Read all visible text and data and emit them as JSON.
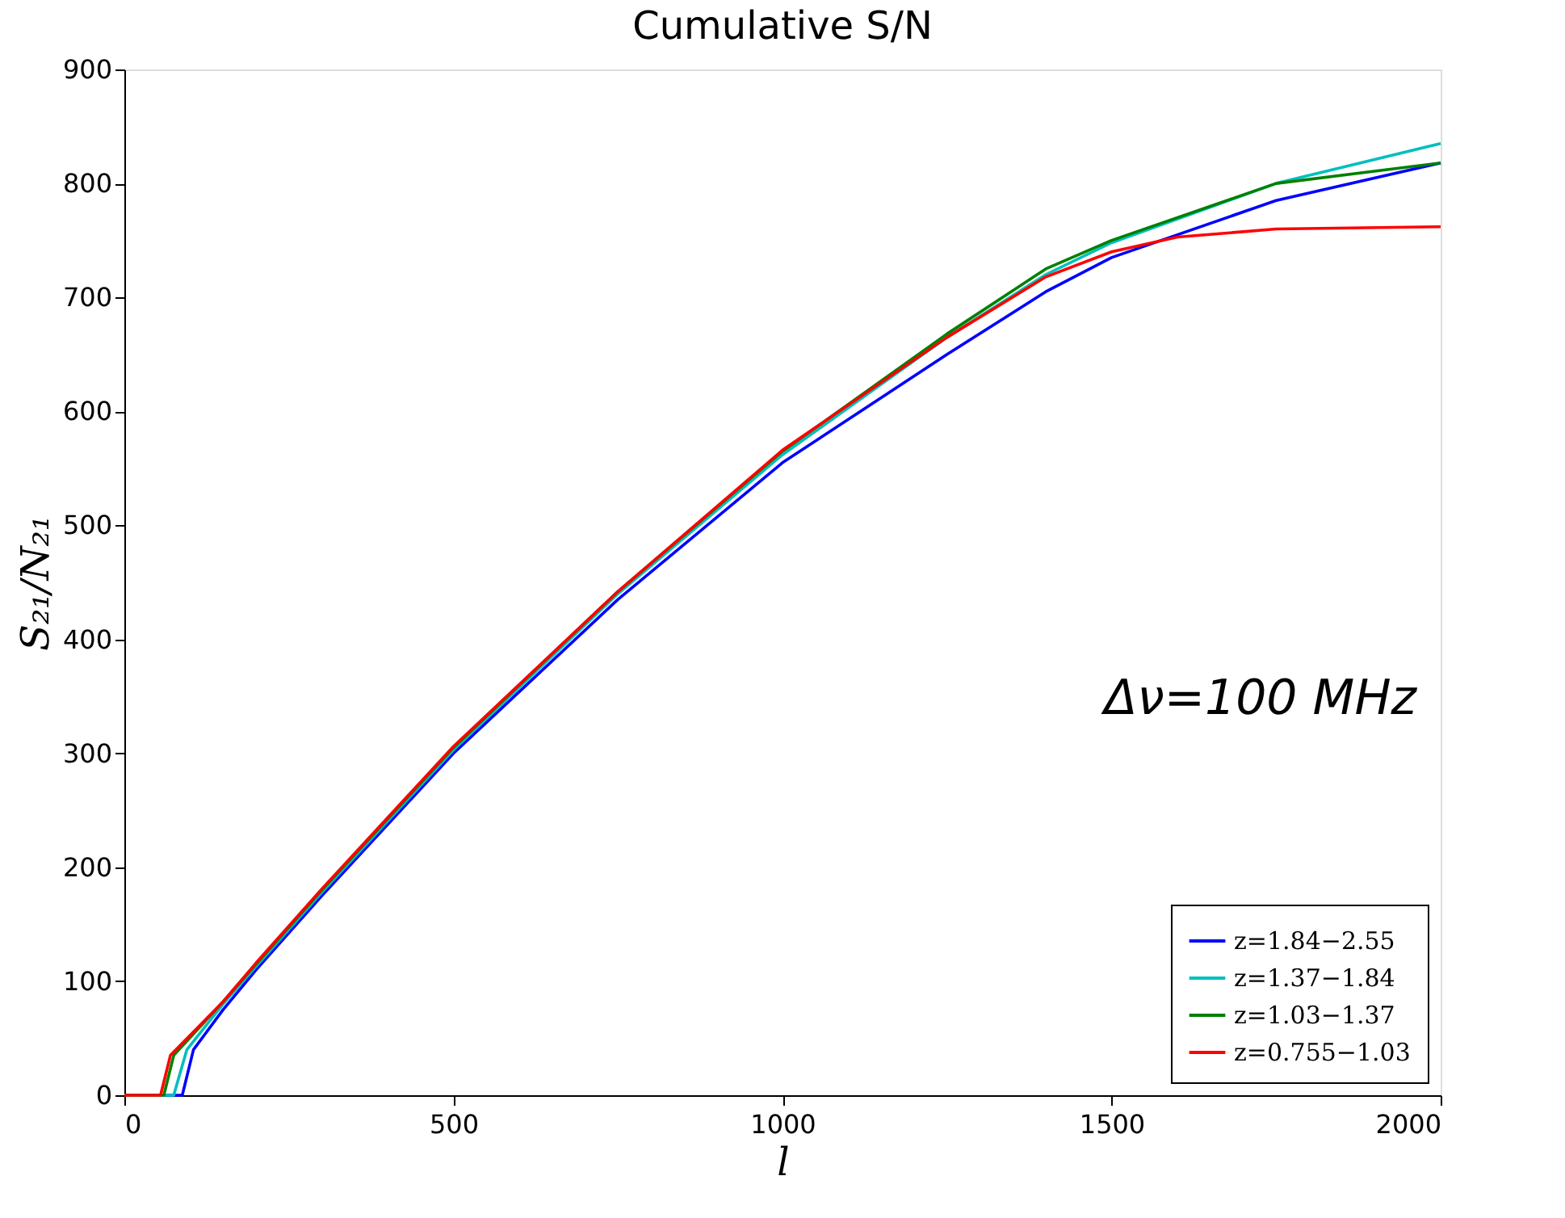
{
  "chart_data": {
    "type": "line",
    "title": "Cumulative S/N",
    "xlabel": "l",
    "ylabel": "S₂₁/N₂₁",
    "xlim": [
      0,
      2000
    ],
    "xticks": [
      0,
      500,
      1000,
      1500,
      2000
    ],
    "ylim": [
      0,
      900
    ],
    "yticks": [
      0,
      100,
      200,
      300,
      400,
      500,
      600,
      700,
      800,
      900
    ],
    "grid": false,
    "legend": "bottom right",
    "line_style": "solid",
    "annotations": [
      "Δν=100 MHz"
    ],
    "series": [
      {
        "name": "z=1.84−2.55",
        "color": "#0000ff",
        "x": [
          0,
          88,
          105,
          150,
          200,
          300,
          500,
          750,
          1000,
          1250,
          1400,
          1500,
          1750,
          2000
        ],
        "values": [
          0,
          0,
          40,
          75,
          110,
          175,
          300,
          435,
          555,
          650,
          705,
          735,
          785,
          818
        ]
      },
      {
        "name": "z=1.37−1.84",
        "color": "#00bfbf",
        "x": [
          0,
          75,
          95,
          150,
          200,
          300,
          500,
          750,
          1000,
          1250,
          1400,
          1500,
          1750,
          2000
        ],
        "values": [
          0,
          0,
          40,
          80,
          113,
          178,
          303,
          440,
          562,
          665,
          720,
          748,
          800,
          835
        ]
      },
      {
        "name": "z=1.03−1.37",
        "color": "#008000",
        "x": [
          0,
          60,
          75,
          150,
          200,
          300,
          500,
          750,
          1000,
          1250,
          1400,
          1500,
          1750,
          2000
        ],
        "values": [
          0,
          0,
          35,
          82,
          115,
          180,
          305,
          442,
          565,
          668,
          725,
          750,
          800,
          818
        ]
      },
      {
        "name": "z=0.755−1.03",
        "color": "#ff0000",
        "x": [
          0,
          55,
          70,
          150,
          200,
          300,
          500,
          750,
          1000,
          1250,
          1400,
          1500,
          1600,
          1750,
          2000
        ],
        "values": [
          0,
          0,
          35,
          82,
          116,
          181,
          306,
          442,
          566,
          665,
          718,
          740,
          753,
          760,
          762
        ]
      }
    ]
  }
}
